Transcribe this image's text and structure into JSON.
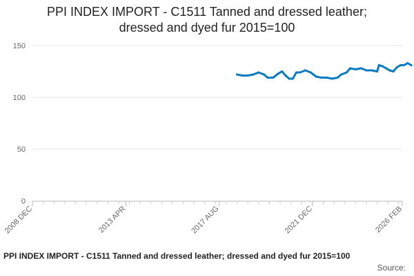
{
  "chart_data": {
    "type": "line",
    "title_lines": [
      "PPI INDEX IMPORT - C1511 Tanned and dressed leather;",
      "dressed and dyed fur 2015=100"
    ],
    "ylim": [
      0,
      150
    ],
    "y_ticks": [
      0,
      50,
      100,
      150
    ],
    "x_tick_labels": [
      "2008 DEC",
      "2013 APR",
      "2017 AUG",
      "2021 DEC",
      "2026 FEB"
    ],
    "x_tick_dates": [
      "2008-12",
      "2013-04",
      "2017-08",
      "2021-12",
      "2026-02"
    ],
    "grid": true,
    "legend": "none",
    "series": [
      {
        "color": "#0a7bbf",
        "points": [
          [
            "2018-06",
            122
          ],
          [
            "2018-09",
            121
          ],
          [
            "2018-12",
            121
          ],
          [
            "2019-03",
            122
          ],
          [
            "2019-06",
            124
          ],
          [
            "2019-09",
            122
          ],
          [
            "2019-11",
            119
          ],
          [
            "2020-02",
            119
          ],
          [
            "2020-05",
            123
          ],
          [
            "2020-07",
            125
          ],
          [
            "2020-09",
            121
          ],
          [
            "2020-11",
            118
          ],
          [
            "2021-01",
            118
          ],
          [
            "2021-03",
            124
          ],
          [
            "2021-05",
            124
          ],
          [
            "2021-08",
            126
          ],
          [
            "2021-11",
            124
          ],
          [
            "2022-02",
            120
          ],
          [
            "2022-05",
            119
          ],
          [
            "2022-08",
            119
          ],
          [
            "2022-11",
            118
          ],
          [
            "2023-02",
            119
          ],
          [
            "2023-04",
            122
          ],
          [
            "2023-07",
            124
          ],
          [
            "2023-09",
            128
          ],
          [
            "2023-12",
            127
          ],
          [
            "2024-03",
            128
          ],
          [
            "2024-06",
            126
          ],
          [
            "2024-09",
            126
          ],
          [
            "2024-12",
            125
          ],
          [
            "2025-01",
            131
          ],
          [
            "2025-03",
            130
          ],
          [
            "2025-05",
            128
          ],
          [
            "2025-07",
            126
          ],
          [
            "2025-09",
            125
          ],
          [
            "2025-11",
            129
          ],
          [
            "2026-01",
            131
          ],
          [
            "2026-03",
            131
          ],
          [
            "2026-05",
            133
          ],
          [
            "2026-07",
            131
          ]
        ]
      }
    ]
  },
  "footer": {
    "title": "PPI INDEX IMPORT - C1511 Tanned and dressed leather; dressed and dyed fur 2015=100",
    "source_label": "Source:"
  }
}
